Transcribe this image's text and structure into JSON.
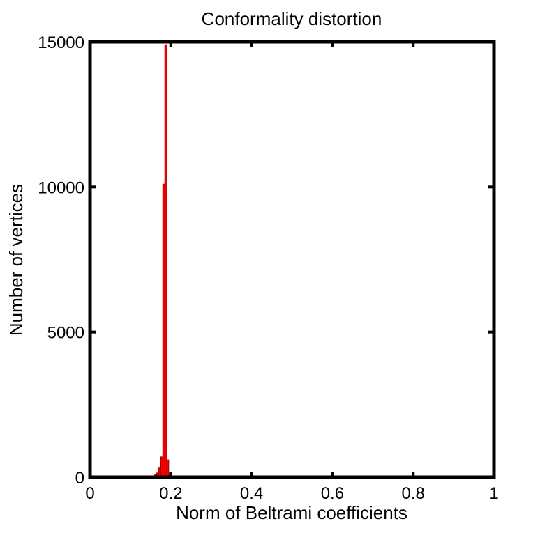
{
  "chart_data": {
    "type": "bar",
    "title": "Conformality distortion",
    "xlabel": "Norm of Beltrami coefficients",
    "ylabel": "Number of vertices",
    "xlim": [
      0,
      1
    ],
    "ylim": [
      0,
      15000
    ],
    "xticks": [
      "0",
      "0.2",
      "0.4",
      "0.6",
      "0.8",
      "1"
    ],
    "yticks": [
      "0",
      "5000",
      "10000",
      "15000"
    ],
    "grid": false,
    "bar_color": "#ff0000",
    "bar_edge_color": "#8b0000",
    "bin_width": 0.005,
    "bins": [
      {
        "x": 0.1525,
        "value": 10
      },
      {
        "x": 0.1575,
        "value": 40
      },
      {
        "x": 0.1625,
        "value": 90
      },
      {
        "x": 0.1675,
        "value": 150
      },
      {
        "x": 0.1725,
        "value": 320
      },
      {
        "x": 0.1775,
        "value": 700
      },
      {
        "x": 0.1825,
        "value": 10100
      },
      {
        "x": 0.1875,
        "value": 14900
      },
      {
        "x": 0.1925,
        "value": 600
      },
      {
        "x": 0.1975,
        "value": 150
      },
      {
        "x": 0.2025,
        "value": 20
      }
    ]
  }
}
